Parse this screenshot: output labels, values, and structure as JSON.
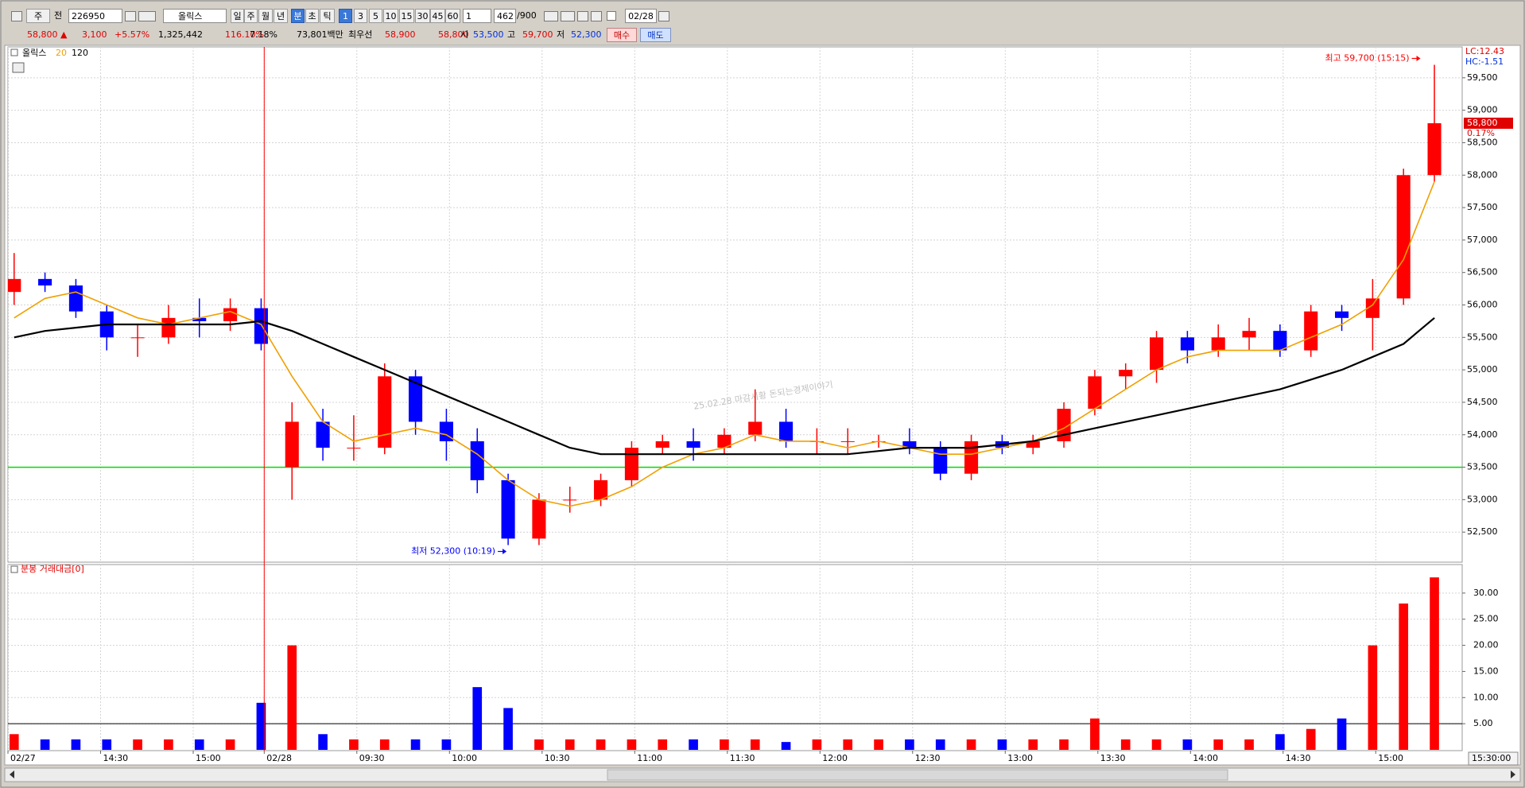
{
  "toolbar": {
    "items": [
      "주",
      "전",
      "226950",
      "올릭스",
      "일",
      "주",
      "월",
      "년",
      "분",
      "초",
      "틱",
      "1",
      "3",
      "5",
      "10",
      "15",
      "30",
      "45",
      "60",
      "1",
      "462",
      "/900",
      "02/28"
    ]
  },
  "info": {
    "items": [
      "58,800 ▲",
      "3,100",
      "+5.57%",
      "1,325,442",
      "116.10%",
      "7.18%",
      "73,801백만",
      "최우선",
      "58,900",
      "58,800",
      "시",
      "53,500",
      "고",
      "59,700",
      "저",
      "52,300",
      "매수",
      "매도"
    ]
  },
  "chart_data": [
    {
      "type": "candlestick",
      "name": "올릭스",
      "x": [
        2,
        12,
        22,
        32,
        42,
        52,
        62,
        72,
        82,
        92,
        102,
        112,
        122,
        132,
        142,
        152,
        162,
        172,
        182,
        192,
        202,
        212,
        222,
        232,
        242,
        252,
        262,
        272,
        282,
        292,
        302,
        312,
        322,
        332,
        342,
        352,
        362,
        372,
        382,
        392,
        402,
        412,
        422,
        432,
        442,
        452,
        462
      ],
      "open": [
        56200,
        56400,
        56300,
        55900,
        55500,
        55500,
        55800,
        55750,
        55950,
        53500,
        54200,
        53800,
        53800,
        54900,
        54200,
        53900,
        53300,
        52400,
        53000,
        53000,
        53300,
        53800,
        53900,
        53800,
        54000,
        54200,
        53900,
        53900,
        53900,
        53900,
        53800,
        53400,
        53900,
        53800,
        53900,
        54400,
        54900,
        55000,
        55500,
        55300,
        55500,
        55600,
        55300,
        55900,
        55800,
        56100,
        58000
      ],
      "high": [
        56800,
        56500,
        56400,
        56000,
        55700,
        56000,
        56100,
        56100,
        56100,
        54500,
        54400,
        54300,
        55100,
        55000,
        54400,
        54100,
        53400,
        53100,
        53200,
        53400,
        53900,
        54000,
        54100,
        54100,
        54700,
        54400,
        54100,
        54100,
        54000,
        54100,
        53900,
        54000,
        54000,
        54000,
        54500,
        55000,
        55100,
        55600,
        55600,
        55700,
        55800,
        55700,
        56000,
        56000,
        56400,
        58100,
        59700
      ],
      "low": [
        56000,
        56200,
        55800,
        55300,
        55200,
        55400,
        55500,
        55600,
        55300,
        53000,
        53600,
        53600,
        53700,
        54000,
        53600,
        53100,
        52300,
        52300,
        52800,
        52900,
        53200,
        53700,
        53600,
        53700,
        53900,
        53800,
        53700,
        53700,
        53800,
        53700,
        53300,
        53300,
        53700,
        53700,
        53800,
        54300,
        54700,
        54800,
        55100,
        55200,
        55300,
        55200,
        55200,
        55600,
        55300,
        56000,
        57900
      ],
      "close": [
        56400,
        56300,
        55900,
        55500,
        55500,
        55800,
        55750,
        55950,
        55400,
        54200,
        53800,
        53800,
        54900,
        54200,
        53900,
        53300,
        52400,
        53000,
        53000,
        53300,
        53800,
        53900,
        53800,
        54000,
        54200,
        53900,
        53900,
        53900,
        53900,
        53800,
        53400,
        53900,
        53800,
        53900,
        54400,
        54900,
        55000,
        55500,
        55300,
        55500,
        55600,
        55300,
        55900,
        55800,
        56100,
        58000,
        58800
      ],
      "up_color": "#ff0000",
      "down_color": "#0000ff",
      "series": [
        {
          "name": "20",
          "color": "#f0a000",
          "values": [
            55800,
            56100,
            56200,
            56000,
            55800,
            55700,
            55800,
            55900,
            55700,
            54900,
            54200,
            53900,
            54000,
            54100,
            54000,
            53700,
            53300,
            53000,
            52900,
            53000,
            53200,
            53500,
            53700,
            53800,
            54000,
            53900,
            53900,
            53800,
            53900,
            53800,
            53700,
            53700,
            53800,
            53900,
            54100,
            54400,
            54700,
            55000,
            55200,
            55300,
            55300,
            55300,
            55500,
            55700,
            56000,
            56700,
            57900
          ]
        },
        {
          "name": "120",
          "color": "#000000",
          "values": [
            55500,
            55600,
            55650,
            55700,
            55700,
            55700,
            55700,
            55700,
            55750,
            55600,
            55400,
            55200,
            55000,
            54800,
            54600,
            54400,
            54200,
            54000,
            53800,
            53700,
            53700,
            53700,
            53700,
            53700,
            53700,
            53700,
            53700,
            53700,
            53750,
            53800,
            53800,
            53800,
            53850,
            53900,
            54000,
            54100,
            54200,
            54300,
            54400,
            54500,
            54600,
            54700,
            54850,
            55000,
            55200,
            55400,
            55800
          ]
        }
      ],
      "xlim": [
        0,
        471
      ],
      "xticks": [
        {
          "value": 0,
          "label": "02/27"
        },
        {
          "value": 30,
          "label": "14:30"
        },
        {
          "value": 60,
          "label": "15:00"
        },
        {
          "value": 83,
          "label": "02/28"
        },
        {
          "value": 113,
          "label": "09:30"
        },
        {
          "value": 143,
          "label": "10:00"
        },
        {
          "value": 173,
          "label": "10:30"
        },
        {
          "value": 203,
          "label": "11:00"
        },
        {
          "value": 233,
          "label": "11:30"
        },
        {
          "value": 263,
          "label": "12:00"
        },
        {
          "value": 293,
          "label": "12:30"
        },
        {
          "value": 323,
          "label": "13:00"
        },
        {
          "value": 353,
          "label": "13:30"
        },
        {
          "value": 383,
          "label": "14:00"
        },
        {
          "value": 413,
          "label": "14:30"
        },
        {
          "value": 443,
          "label": "15:00"
        }
      ],
      "ylim": [
        52000,
        60000
      ],
      "yticks": [
        {
          "value": 52500,
          "label": "52,500"
        },
        {
          "value": 53000,
          "label": "53,000"
        },
        {
          "value": 53500,
          "label": "53,500"
        },
        {
          "value": 54000,
          "label": "54,000"
        },
        {
          "value": 54500,
          "label": "54,500"
        },
        {
          "value": 55000,
          "label": "55,000"
        },
        {
          "value": 55500,
          "label": "55,500"
        },
        {
          "value": 56000,
          "label": "56,000"
        },
        {
          "value": 56500,
          "label": "56,500"
        },
        {
          "value": 57000,
          "label": "57,000"
        },
        {
          "value": 57500,
          "label": "57,500"
        },
        {
          "value": 58000,
          "label": "58,000"
        },
        {
          "value": 58500,
          "label": "58,500"
        },
        {
          "value": 59000,
          "label": "59,000"
        },
        {
          "value": 59500,
          "label": "59,500"
        }
      ],
      "grid": true,
      "hline": {
        "value": 53500,
        "color": "#00dd00"
      },
      "separator": {
        "x": 83,
        "color": "#ff0000"
      },
      "annotations": [
        {
          "text": "최고 59,700 (15:15)",
          "x": 458,
          "y": 59700,
          "color": "#ff0000"
        },
        {
          "text": "최저 52,300 (10:19)",
          "x": 162,
          "y": 52300,
          "color": "#0000ff"
        }
      ],
      "watermark": "25.02.28 마감시황 돈되는경제이야기",
      "lc": "LC:12.43",
      "hc": "HC:-1.51",
      "last": {
        "value": 58800,
        "label": "58,800"
      },
      "last_change": "0.17%"
    },
    {
      "type": "bar",
      "title": "분봉 거래대금[0]",
      "values": [
        3,
        2,
        2,
        2,
        2,
        2,
        2,
        2,
        9,
        20,
        3,
        2,
        2,
        2,
        2,
        12,
        8,
        2,
        2,
        2,
        2,
        2,
        2,
        2,
        2,
        1.5,
        2,
        2,
        2,
        2,
        2,
        2,
        2,
        2,
        2,
        6,
        2,
        2,
        2,
        2,
        2,
        3,
        4,
        6,
        20,
        28,
        33
      ],
      "ylim": [
        0,
        35
      ],
      "yticks": [
        {
          "value": 5,
          "label": "5.00"
        },
        {
          "value": 10,
          "label": "10.00"
        },
        {
          "value": 15,
          "label": "15.00"
        },
        {
          "value": 20,
          "label": "20.00"
        },
        {
          "value": 25,
          "label": "25.00"
        },
        {
          "value": 30,
          "label": "30.00"
        }
      ],
      "grid": true,
      "hline": 5,
      "cursor_label": "15:30:00"
    }
  ]
}
